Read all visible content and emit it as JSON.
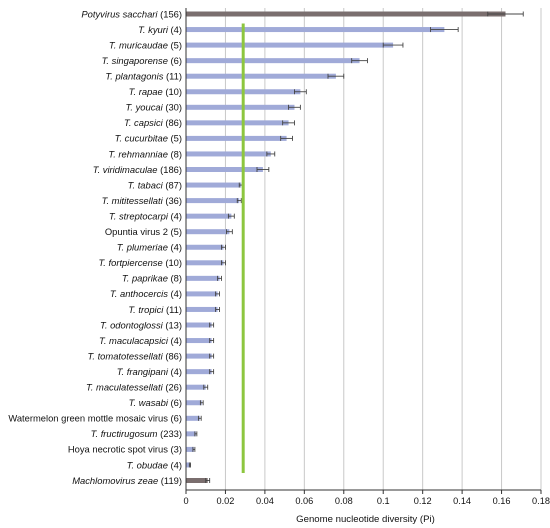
{
  "chart_data": {
    "type": "bar",
    "orientation": "horizontal",
    "xlabel": "Genome nucleotide diversity (Pi)",
    "ylabel": "",
    "xlim": [
      0,
      0.18
    ],
    "xticks": [
      "0",
      "0.02",
      "0.04",
      "0.06",
      "0.08",
      "0.1",
      "0.12",
      "0.14",
      "0.16",
      "0.18"
    ],
    "grid": "vertical",
    "reference_line": {
      "x": 0.029,
      "color": "#8dc63f"
    },
    "colors": {
      "bar": "#a0aad8",
      "outgroup_bar": "#7a6e6e",
      "error": "#444444",
      "grid": "#c8c8c8"
    },
    "categories": [
      {
        "name": "Potyvirus sacchari",
        "italic": true,
        "n": "(156)",
        "value": 0.162,
        "error": 0.009,
        "outgroup": true
      },
      {
        "name": "T. kyuri",
        "italic": true,
        "n": "(4)",
        "value": 0.131,
        "error": 0.007
      },
      {
        "name": "T. muricaudae",
        "italic": true,
        "n": "(5)",
        "value": 0.105,
        "error": 0.005
      },
      {
        "name": "T. singaporense",
        "italic": true,
        "n": "(6)",
        "value": 0.088,
        "error": 0.004
      },
      {
        "name": "T. plantagonis",
        "italic": true,
        "n": "(11)",
        "value": 0.076,
        "error": 0.004
      },
      {
        "name": "T. rapae",
        "italic": true,
        "n": "(10)",
        "value": 0.058,
        "error": 0.003
      },
      {
        "name": "T. youcai",
        "italic": true,
        "n": "(30)",
        "value": 0.055,
        "error": 0.003
      },
      {
        "name": "T. capsici",
        "italic": true,
        "n": "(86)",
        "value": 0.052,
        "error": 0.003
      },
      {
        "name": "T. cucurbitae",
        "italic": true,
        "n": "(5)",
        "value": 0.051,
        "error": 0.003
      },
      {
        "name": "T. rehmanniae",
        "italic": true,
        "n": "(8)",
        "value": 0.043,
        "error": 0.002
      },
      {
        "name": "T. viridimaculae",
        "italic": true,
        "n": "(186)",
        "value": 0.039,
        "error": 0.003
      },
      {
        "name": "T. tabaci",
        "italic": true,
        "n": "(87)",
        "value": 0.028,
        "error": 0.001
      },
      {
        "name": "T. mititessellati",
        "italic": true,
        "n": "(36)",
        "value": 0.027,
        "error": 0.001
      },
      {
        "name": "T. streptocarpi",
        "italic": true,
        "n": "(4)",
        "value": 0.023,
        "error": 0.0015
      },
      {
        "name": "Opuntia virus 2",
        "italic": false,
        "n": "(5)",
        "value": 0.022,
        "error": 0.0015
      },
      {
        "name": "T. plumeriae",
        "italic": true,
        "n": "(4)",
        "value": 0.019,
        "error": 0.001
      },
      {
        "name": "T. fortpiercense",
        "italic": true,
        "n": "(10)",
        "value": 0.019,
        "error": 0.001
      },
      {
        "name": "T. paprikae",
        "italic": true,
        "n": "(8)",
        "value": 0.017,
        "error": 0.001
      },
      {
        "name": "T. anthocercis",
        "italic": true,
        "n": "(4)",
        "value": 0.016,
        "error": 0.001
      },
      {
        "name": "T. tropici",
        "italic": true,
        "n": "(11)",
        "value": 0.016,
        "error": 0.001
      },
      {
        "name": "T. odontoglossi",
        "italic": true,
        "n": "(13)",
        "value": 0.013,
        "error": 0.001
      },
      {
        "name": "T. maculacapsici",
        "italic": true,
        "n": "(4)",
        "value": 0.013,
        "error": 0.001
      },
      {
        "name": "T. tomatotessellati",
        "italic": true,
        "n": "(86)",
        "value": 0.013,
        "error": 0.001
      },
      {
        "name": "T. frangipani",
        "italic": true,
        "n": "(4)",
        "value": 0.013,
        "error": 0.001
      },
      {
        "name": "T. maculatessellati",
        "italic": true,
        "n": "(26)",
        "value": 0.01,
        "error": 0.001
      },
      {
        "name": "T. wasabi",
        "italic": true,
        "n": "(6)",
        "value": 0.008,
        "error": 0.0007
      },
      {
        "name": "Watermelon green mottle mosaic virus",
        "italic": false,
        "n": "(6)",
        "value": 0.007,
        "error": 0.0007
      },
      {
        "name": "T. fructirugosum",
        "italic": true,
        "n": "(233)",
        "value": 0.005,
        "error": 0.0005
      },
      {
        "name": "Hoya necrotic spot virus",
        "italic": false,
        "n": "(3)",
        "value": 0.004,
        "error": 0.0005
      },
      {
        "name": "T. obudae",
        "italic": true,
        "n": "(4)",
        "value": 0.002,
        "error": 0.0003
      },
      {
        "name": "Machlomovirus zeae",
        "italic": true,
        "n": "(119)",
        "value": 0.011,
        "error": 0.001,
        "outgroup": true
      }
    ]
  }
}
